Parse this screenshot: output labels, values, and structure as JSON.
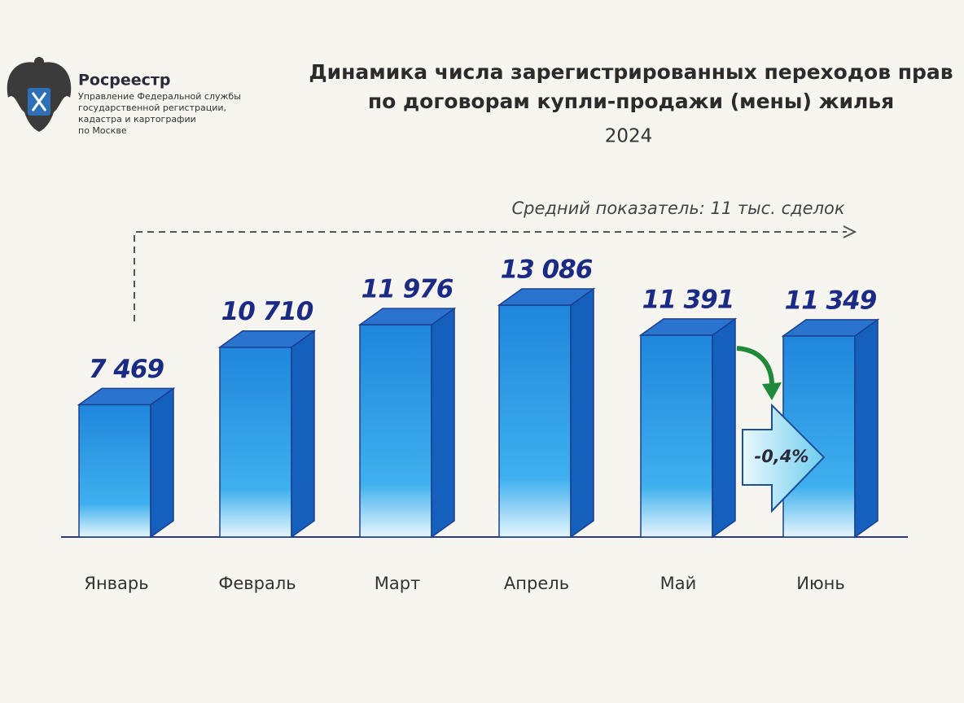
{
  "logo": {
    "name": "Росреестр",
    "org": [
      "Управление Федеральной службы",
      "государственной регистрации,",
      "кадастра и картографии",
      "по Москве"
    ]
  },
  "chart_data": {
    "type": "bar",
    "title": [
      "Динамика числа зарегистрированных переходов прав",
      "по договорам купли-продажи (мены) жилья"
    ],
    "subtitle": "2024",
    "average_annotation": "Средний показатель: 11 тыс. сделок",
    "change_annotation": "-0,4%",
    "categories": [
      "Январь",
      "Февраль",
      "Март",
      "Апрель",
      "Май",
      "Июнь"
    ],
    "values": [
      7469,
      10710,
      11976,
      13086,
      11391,
      11349
    ],
    "value_labels": [
      "7 469",
      "10 710",
      "11 976",
      "13 086",
      "11 391",
      "11 349"
    ],
    "color": "#1e7fd8"
  }
}
